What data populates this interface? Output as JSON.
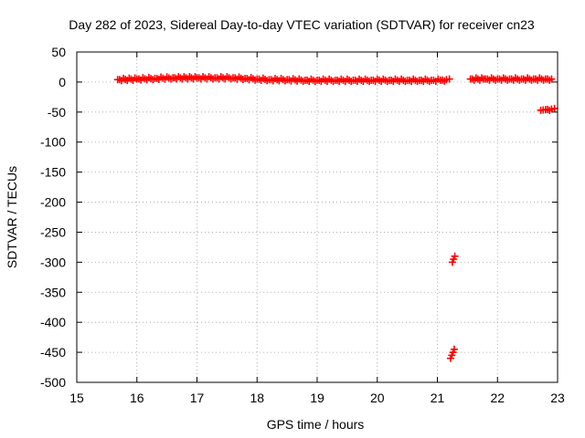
{
  "chart_data": {
    "type": "scatter",
    "title": "Day 282 of 2023, Sidereal Day-to-day VTEC variation (SDTVAR) for receiver cn23",
    "xlabel": "GPS time / hours",
    "ylabel": "SDTVAR / TECUs",
    "xlim": [
      15,
      23
    ],
    "ylim": [
      -500,
      50
    ],
    "xticks": [
      15,
      16,
      17,
      18,
      19,
      20,
      21,
      22,
      23
    ],
    "yticks": [
      50,
      0,
      -50,
      -100,
      -150,
      -200,
      -250,
      -300,
      -350,
      -400,
      -450,
      -500
    ],
    "grid": true,
    "legend": "none",
    "marker_color": "#ff0000",
    "series": [
      {
        "values_segments": [
          {
            "x": [
              15.68,
              16.0,
              16.3,
              16.6,
              17.0,
              17.3,
              17.6,
              17.8,
              18.0,
              18.2,
              18.5,
              18.8,
              19.0,
              19.3,
              19.6,
              19.9,
              20.2,
              20.5,
              20.7,
              20.9,
              21.05,
              21.15,
              21.2
            ],
            "y": [
              4,
              5,
              6,
              7,
              7,
              7,
              7,
              6,
              5,
              4,
              4,
              3,
              3,
              3,
              3,
              3,
              3,
              3,
              3,
              3,
              3,
              4,
              5
            ]
          },
          {
            "x": [
              21.25,
              21.27,
              21.29
            ],
            "y": [
              -300,
              -295,
              -290
            ]
          },
          {
            "x": [
              21.22,
              21.24,
              21.26,
              21.28
            ],
            "y": [
              -460,
              -455,
              -450,
              -445
            ]
          },
          {
            "x": [
              21.55,
              21.8,
              22.0,
              22.2,
              22.4,
              22.6,
              22.8,
              22.9
            ],
            "y": [
              5,
              5,
              5,
              5,
              5,
              5,
              5,
              5
            ]
          },
          {
            "x": [
              22.72,
              22.8,
              22.9,
              22.95
            ],
            "y": [
              -47,
              -46,
              -45,
              -44
            ]
          }
        ]
      }
    ]
  }
}
